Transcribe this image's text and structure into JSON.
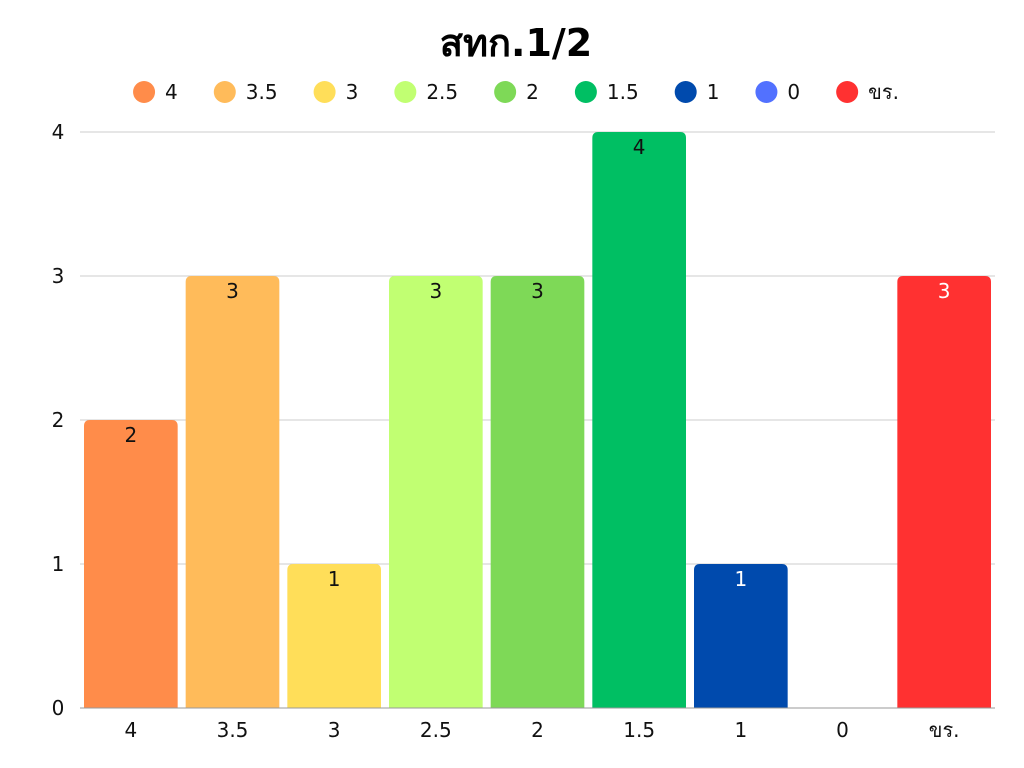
{
  "chart_data": {
    "type": "bar",
    "title": "สทก.1/2",
    "xlabel": "",
    "ylabel": "",
    "categories": [
      "4",
      "3.5",
      "3",
      "2.5",
      "2",
      "1.5",
      "1",
      "0",
      "ขร."
    ],
    "values": [
      2,
      3,
      1,
      3,
      3,
      4,
      1,
      0,
      3
    ],
    "colors": [
      "#ff8c4a",
      "#ffbb5a",
      "#ffde59",
      "#c1ff72",
      "#7ed957",
      "#00bf63",
      "#004aad",
      "#5271ff",
      "#ff3131"
    ],
    "label_colors": [
      "#111111",
      "#111111",
      "#111111",
      "#111111",
      "#111111",
      "#111111",
      "#ffffff",
      "#ffffff",
      "#ffffff"
    ],
    "ylim": [
      0,
      4
    ],
    "yticks": [
      0,
      1,
      2,
      3,
      4
    ],
    "grid": true,
    "legend": "top",
    "data_labels": true
  }
}
